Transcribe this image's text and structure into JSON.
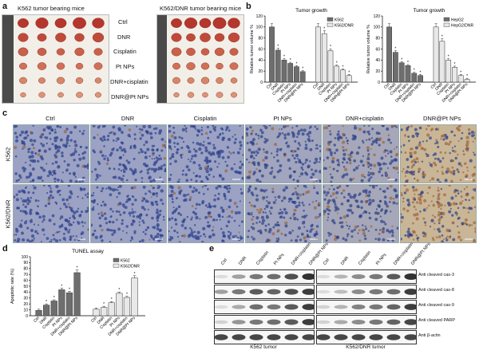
{
  "panel_a": {
    "letter": "a",
    "title_left": "K562 tumor bearing mice",
    "title_right": "K562/DNR tumor bearing mice",
    "groups": [
      "Ctrl",
      "DNR",
      "Cisplatin",
      "Pt NPs",
      "DNR+cisplatin",
      "DNR@Pt NPs"
    ]
  },
  "panel_b": {
    "letter": "b",
    "chart_data": [
      {
        "type": "bar",
        "title": "Tumor growth",
        "ylabel": "Relative tumor volume %",
        "ylim": [
          0,
          120
        ],
        "yticks": [
          0,
          20,
          40,
          60,
          80,
          100,
          120
        ],
        "categories": [
          "Ctrl",
          "DNR",
          "Cisplatin",
          "Pt NPs",
          "DNR+cisplatin",
          "DNR@Pt NPs"
        ],
        "series": [
          {
            "name": "K562",
            "values": [
              100,
              58,
              40,
              34,
              28,
              19
            ],
            "color": "#6e6e6e"
          },
          {
            "name": "K562/DNR",
            "values": [
              100,
              88,
              57,
              29,
              22,
              12
            ],
            "color": "#e8e8e8"
          }
        ],
        "legend": "top-right"
      },
      {
        "type": "bar",
        "title": "Tumor growth",
        "ylabel": "Relative tumor volume %",
        "ylim": [
          0,
          120
        ],
        "yticks": [
          0,
          20,
          40,
          60,
          80,
          100,
          120
        ],
        "categories": [
          "Ctrl",
          "DNR",
          "Cisplatin",
          "Pt NPs",
          "DNR+cisplatin",
          "DNR@Pt NPs"
        ],
        "series": [
          {
            "name": "HepG2",
            "values": [
              100,
              54,
              35,
              30,
              16,
              12
            ],
            "color": "#6e6e6e"
          },
          {
            "name": "HepG2/DNR",
            "values": [
              100,
              74,
              40,
              27,
              12,
              5
            ],
            "color": "#e8e8e8"
          }
        ],
        "legend": "top-right"
      }
    ]
  },
  "panel_c": {
    "letter": "c",
    "columns": [
      "Ctrl",
      "DNR",
      "Cisplatin",
      "Pt NPs",
      "DNR+cisplatin",
      "DNR@Pt NPs"
    ],
    "rows": [
      "K562",
      "K562/DNR"
    ]
  },
  "panel_d": {
    "letter": "d",
    "chart_data": {
      "type": "bar",
      "title": "TUNEL assay",
      "ylabel": "Apoptotic rate (%)",
      "ylim": [
        0,
        100
      ],
      "yticks": [
        0,
        10,
        20,
        30,
        40,
        50,
        60,
        70,
        80,
        90,
        100
      ],
      "categories": [
        "Ctrl",
        "DNR",
        "Cisplatin",
        "Pt NPs",
        "DNR+cisplatin",
        "DNR@Pt NPs"
      ],
      "series": [
        {
          "name": "K562",
          "values": [
            9,
            18,
            25,
            44,
            39,
            73
          ],
          "color": "#6e6e6e"
        },
        {
          "name": "K562/DNR",
          "values": [
            11,
            14,
            22,
            38,
            31,
            64
          ],
          "color": "#e8e8e8"
        }
      ],
      "legend": "top-right"
    }
  },
  "panel_e": {
    "letter": "e",
    "lanes": [
      "Ctrl",
      "DNR",
      "Cisplatin",
      "Pt NPs",
      "DNR+cisplatin",
      "DNR@Pt NPs"
    ],
    "bands": [
      "Anti cleaved cas-3",
      "Anti cleaved cas-8",
      "Anti cleaved cas-9",
      "Anti cleaved PARP",
      "Anti β-actin"
    ],
    "caption_left": "K562 tumor",
    "caption_right": "K562/DNR tumor",
    "intensity_left": [
      [
        0.05,
        0.35,
        0.55,
        0.6,
        0.75,
        0.9
      ],
      [
        0.35,
        0.55,
        0.7,
        0.65,
        0.75,
        0.85
      ],
      [
        0.05,
        0.3,
        0.6,
        0.55,
        0.7,
        0.85
      ],
      [
        0.1,
        0.4,
        0.55,
        0.6,
        0.7,
        0.85
      ],
      [
        0.8,
        0.8,
        0.8,
        0.8,
        0.8,
        0.8
      ]
    ],
    "intensity_right": [
      [
        0.05,
        0.25,
        0.45,
        0.55,
        0.7,
        0.9
      ],
      [
        0.05,
        0.2,
        0.45,
        0.55,
        0.6,
        0.85
      ],
      [
        0.1,
        0.25,
        0.5,
        0.55,
        0.65,
        0.85
      ],
      [
        0.1,
        0.3,
        0.45,
        0.55,
        0.65,
        0.8
      ],
      [
        0.8,
        0.8,
        0.8,
        0.8,
        0.8,
        0.8
      ]
    ]
  }
}
